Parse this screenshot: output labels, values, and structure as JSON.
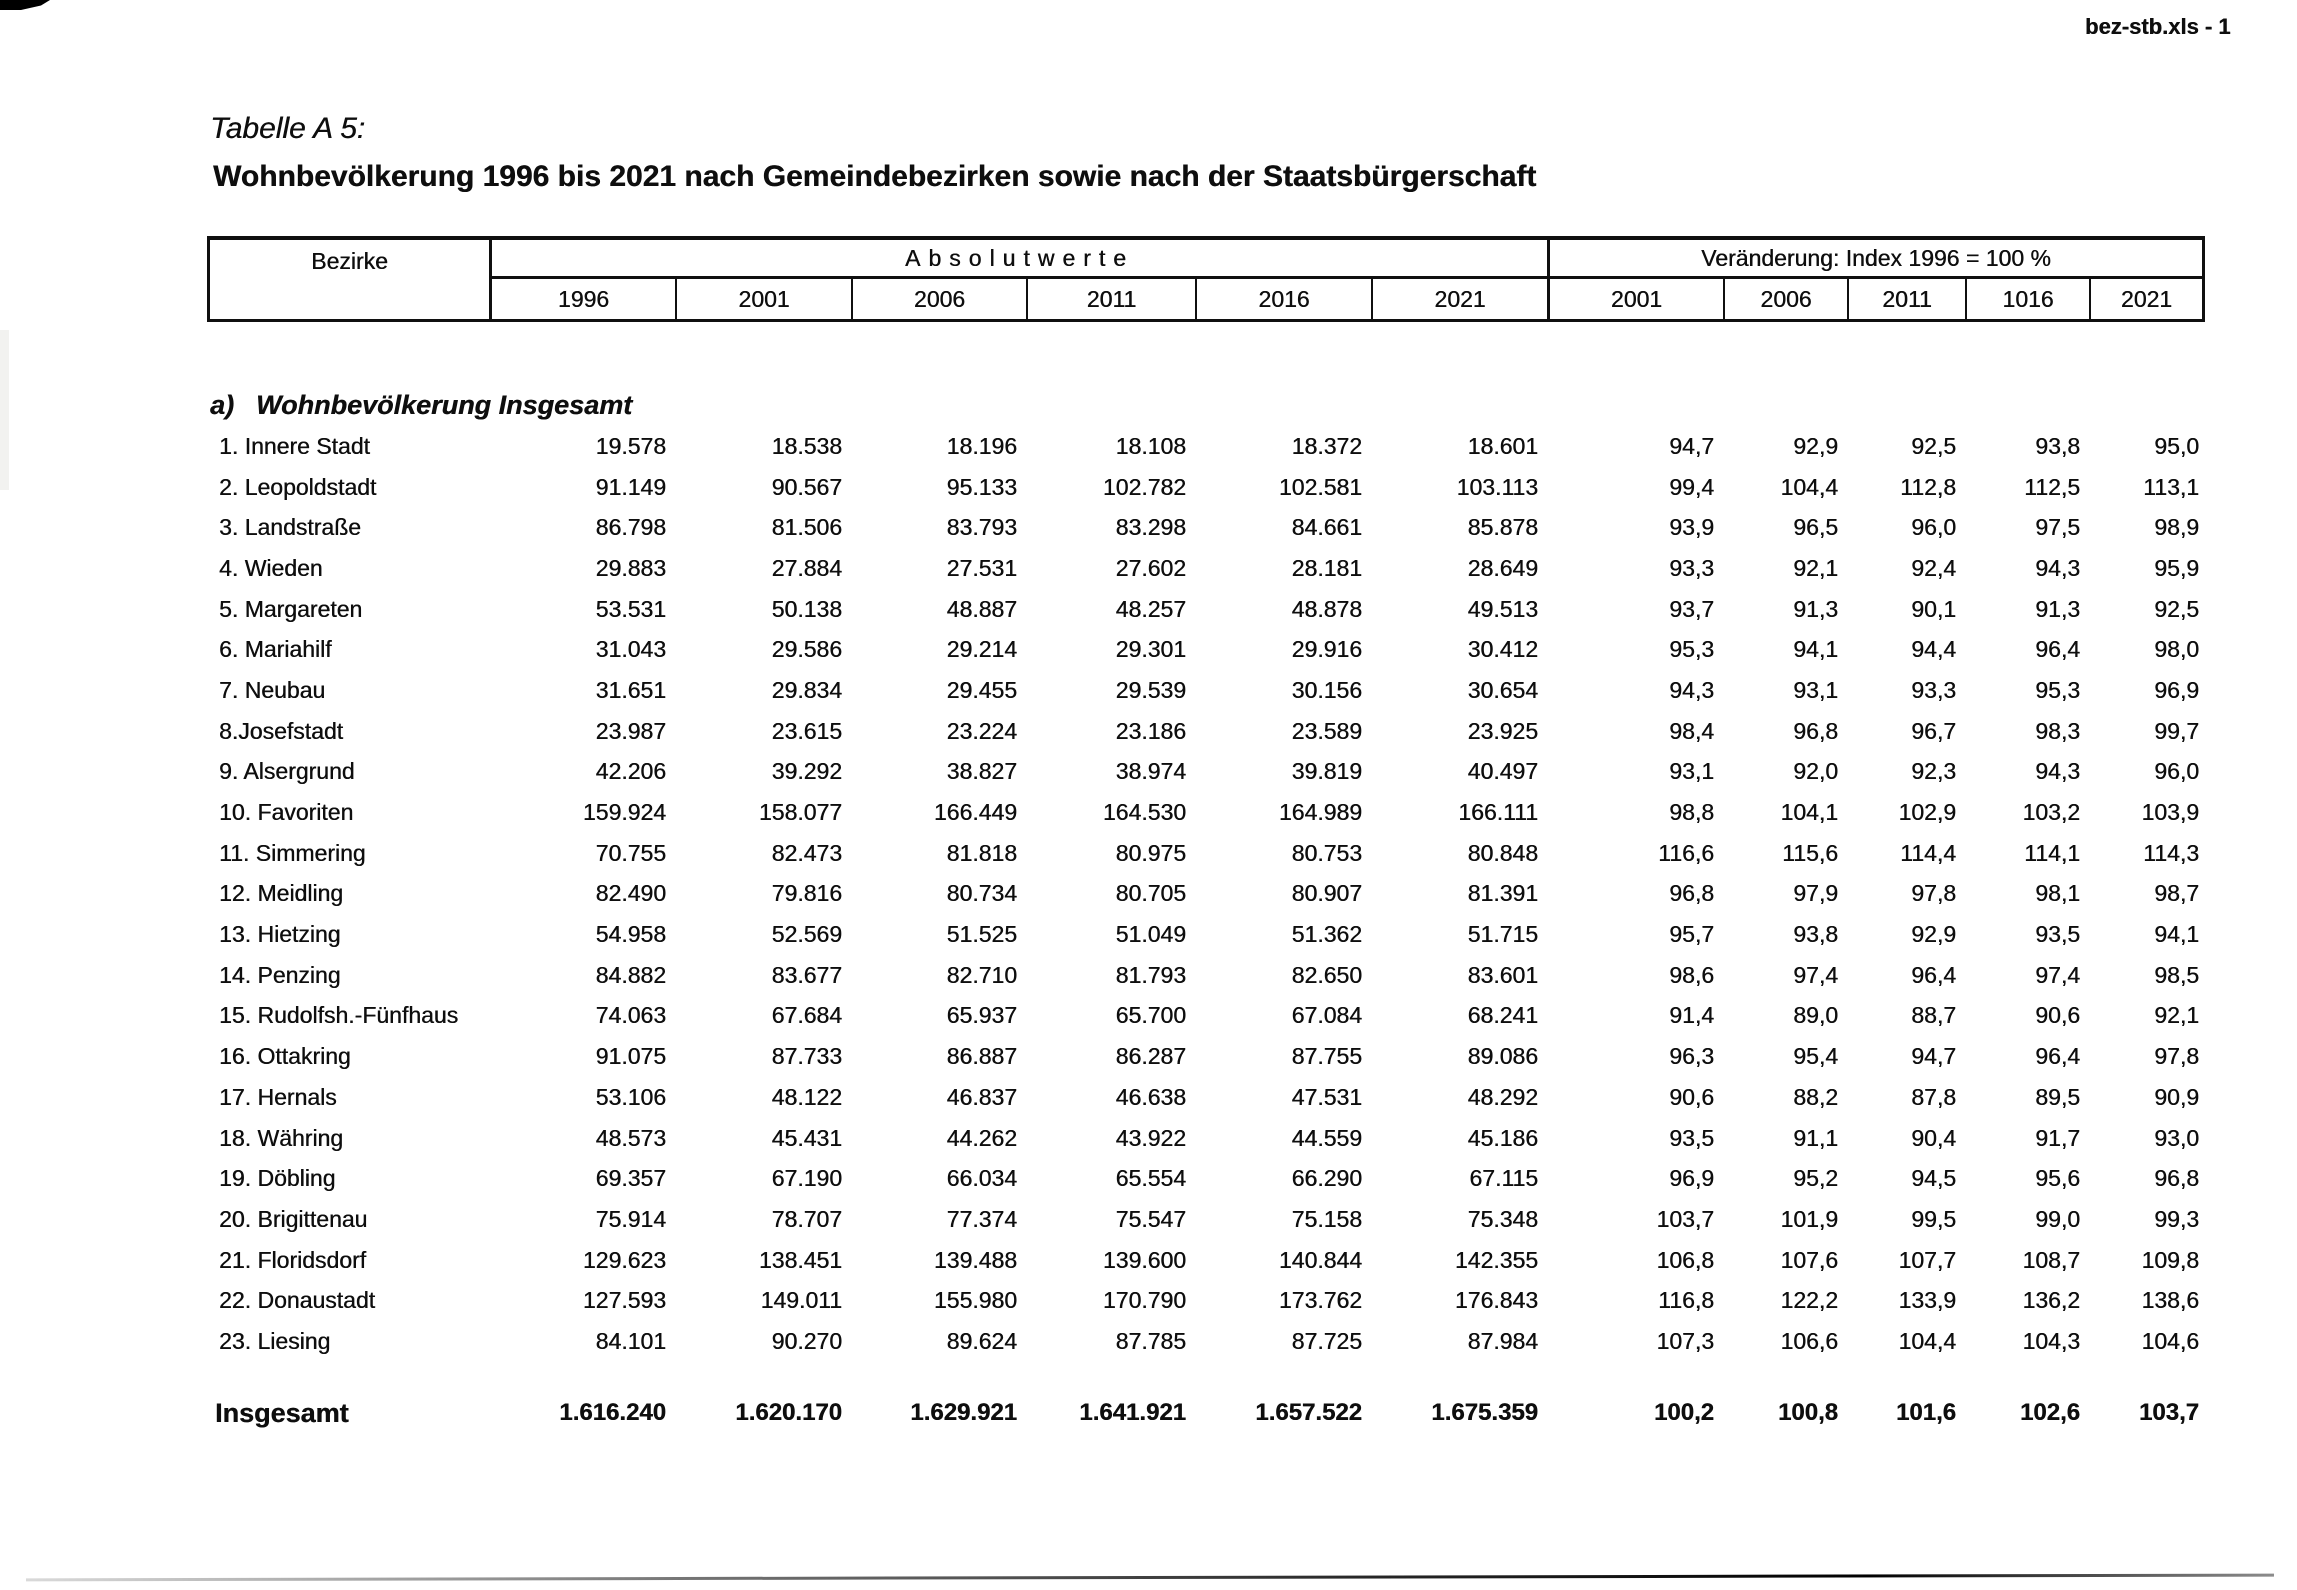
{
  "page": {
    "label": "bez-stb.xls - 1"
  },
  "title": {
    "line1": "Tabelle A 5:",
    "line2": "Wohnbevölkerung 1996 bis 2021 nach Gemeindebezirken sowie nach der Staatsbürgerschaft"
  },
  "section_a": {
    "prefix": "a)",
    "text": "Wohnbevölkerung Insgesamt"
  },
  "table": {
    "col_bezirke": "Bezirke",
    "group_absolut": "Absolutwerte",
    "group_index": "Veränderung: Index 1996 = 100 %",
    "years_absolut": [
      "1996",
      "2001",
      "2006",
      "2011",
      "2016",
      "2021"
    ],
    "years_index": [
      "2001",
      "2006",
      "2011",
      "1016",
      "2021"
    ],
    "rows": [
      {
        "name": "1. Innere Stadt",
        "abs": [
          "19.578",
          "18.538",
          "18.196",
          "18.108",
          "18.372",
          "18.601"
        ],
        "idx": [
          "94,7",
          "92,9",
          "92,5",
          "93,8",
          "95,0"
        ]
      },
      {
        "name": "2. Leopoldstadt",
        "abs": [
          "91.149",
          "90.567",
          "95.133",
          "102.782",
          "102.581",
          "103.113"
        ],
        "idx": [
          "99,4",
          "104,4",
          "112,8",
          "112,5",
          "113,1"
        ]
      },
      {
        "name": "3. Landstraße",
        "abs": [
          "86.798",
          "81.506",
          "83.793",
          "83.298",
          "84.661",
          "85.878"
        ],
        "idx": [
          "93,9",
          "96,5",
          "96,0",
          "97,5",
          "98,9"
        ]
      },
      {
        "name": "4. Wieden",
        "abs": [
          "29.883",
          "27.884",
          "27.531",
          "27.602",
          "28.181",
          "28.649"
        ],
        "idx": [
          "93,3",
          "92,1",
          "92,4",
          "94,3",
          "95,9"
        ]
      },
      {
        "name": "5. Margareten",
        "abs": [
          "53.531",
          "50.138",
          "48.887",
          "48.257",
          "48.878",
          "49.513"
        ],
        "idx": [
          "93,7",
          "91,3",
          "90,1",
          "91,3",
          "92,5"
        ]
      },
      {
        "name": "6. Mariahilf",
        "abs": [
          "31.043",
          "29.586",
          "29.214",
          "29.301",
          "29.916",
          "30.412"
        ],
        "idx": [
          "95,3",
          "94,1",
          "94,4",
          "96,4",
          "98,0"
        ]
      },
      {
        "name": "7. Neubau",
        "abs": [
          "31.651",
          "29.834",
          "29.455",
          "29.539",
          "30.156",
          "30.654"
        ],
        "idx": [
          "94,3",
          "93,1",
          "93,3",
          "95,3",
          "96,9"
        ]
      },
      {
        "name": "8.Josefstadt",
        "abs": [
          "23.987",
          "23.615",
          "23.224",
          "23.186",
          "23.589",
          "23.925"
        ],
        "idx": [
          "98,4",
          "96,8",
          "96,7",
          "98,3",
          "99,7"
        ]
      },
      {
        "name": "9. Alsergrund",
        "abs": [
          "42.206",
          "39.292",
          "38.827",
          "38.974",
          "39.819",
          "40.497"
        ],
        "idx": [
          "93,1",
          "92,0",
          "92,3",
          "94,3",
          "96,0"
        ]
      },
      {
        "name": "10. Favoriten",
        "abs": [
          "159.924",
          "158.077",
          "166.449",
          "164.530",
          "164.989",
          "166.111"
        ],
        "idx": [
          "98,8",
          "104,1",
          "102,9",
          "103,2",
          "103,9"
        ]
      },
      {
        "name": "11. Simmering",
        "abs": [
          "70.755",
          "82.473",
          "81.818",
          "80.975",
          "80.753",
          "80.848"
        ],
        "idx": [
          "116,6",
          "115,6",
          "114,4",
          "114,1",
          "114,3"
        ]
      },
      {
        "name": "12. Meidling",
        "abs": [
          "82.490",
          "79.816",
          "80.734",
          "80.705",
          "80.907",
          "81.391"
        ],
        "idx": [
          "96,8",
          "97,9",
          "97,8",
          "98,1",
          "98,7"
        ]
      },
      {
        "name": "13. Hietzing",
        "abs": [
          "54.958",
          "52.569",
          "51.525",
          "51.049",
          "51.362",
          "51.715"
        ],
        "idx": [
          "95,7",
          "93,8",
          "92,9",
          "93,5",
          "94,1"
        ]
      },
      {
        "name": "14. Penzing",
        "abs": [
          "84.882",
          "83.677",
          "82.710",
          "81.793",
          "82.650",
          "83.601"
        ],
        "idx": [
          "98,6",
          "97,4",
          "96,4",
          "97,4",
          "98,5"
        ]
      },
      {
        "name": "15. Rudolfsh.-Fünfhaus",
        "abs": [
          "74.063",
          "67.684",
          "65.937",
          "65.700",
          "67.084",
          "68.241"
        ],
        "idx": [
          "91,4",
          "89,0",
          "88,7",
          "90,6",
          "92,1"
        ]
      },
      {
        "name": "16. Ottakring",
        "abs": [
          "91.075",
          "87.733",
          "86.887",
          "86.287",
          "87.755",
          "89.086"
        ],
        "idx": [
          "96,3",
          "95,4",
          "94,7",
          "96,4",
          "97,8"
        ]
      },
      {
        "name": "17. Hernals",
        "abs": [
          "53.106",
          "48.122",
          "46.837",
          "46.638",
          "47.531",
          "48.292"
        ],
        "idx": [
          "90,6",
          "88,2",
          "87,8",
          "89,5",
          "90,9"
        ]
      },
      {
        "name": "18. Währing",
        "abs": [
          "48.573",
          "45.431",
          "44.262",
          "43.922",
          "44.559",
          "45.186"
        ],
        "idx": [
          "93,5",
          "91,1",
          "90,4",
          "91,7",
          "93,0"
        ]
      },
      {
        "name": "19. Döbling",
        "abs": [
          "69.357",
          "67.190",
          "66.034",
          "65.554",
          "66.290",
          "67.115"
        ],
        "idx": [
          "96,9",
          "95,2",
          "94,5",
          "95,6",
          "96,8"
        ]
      },
      {
        "name": "20. Brigittenau",
        "abs": [
          "75.914",
          "78.707",
          "77.374",
          "75.547",
          "75.158",
          "75.348"
        ],
        "idx": [
          "103,7",
          "101,9",
          "99,5",
          "99,0",
          "99,3"
        ]
      },
      {
        "name": "21. Floridsdorf",
        "abs": [
          "129.623",
          "138.451",
          "139.488",
          "139.600",
          "140.844",
          "142.355"
        ],
        "idx": [
          "106,8",
          "107,6",
          "107,7",
          "108,7",
          "109,8"
        ]
      },
      {
        "name": "22. Donaustadt",
        "abs": [
          "127.593",
          "149.011",
          "155.980",
          "170.790",
          "173.762",
          "176.843"
        ],
        "idx": [
          "116,8",
          "122,2",
          "133,9",
          "136,2",
          "138,6"
        ]
      },
      {
        "name": "23. Liesing",
        "abs": [
          "84.101",
          "90.270",
          "89.624",
          "87.785",
          "87.725",
          "87.984"
        ],
        "idx": [
          "107,3",
          "106,6",
          "104,4",
          "104,3",
          "104,6"
        ]
      }
    ],
    "total": {
      "name": "Insgesamt",
      "abs": [
        "1.616.240",
        "1.620.170",
        "1.629.921",
        "1.641.921",
        "1.657.522",
        "1.675.359"
      ],
      "idx": [
        "100,2",
        "100,8",
        "101,6",
        "102,6",
        "103,7"
      ]
    }
  }
}
